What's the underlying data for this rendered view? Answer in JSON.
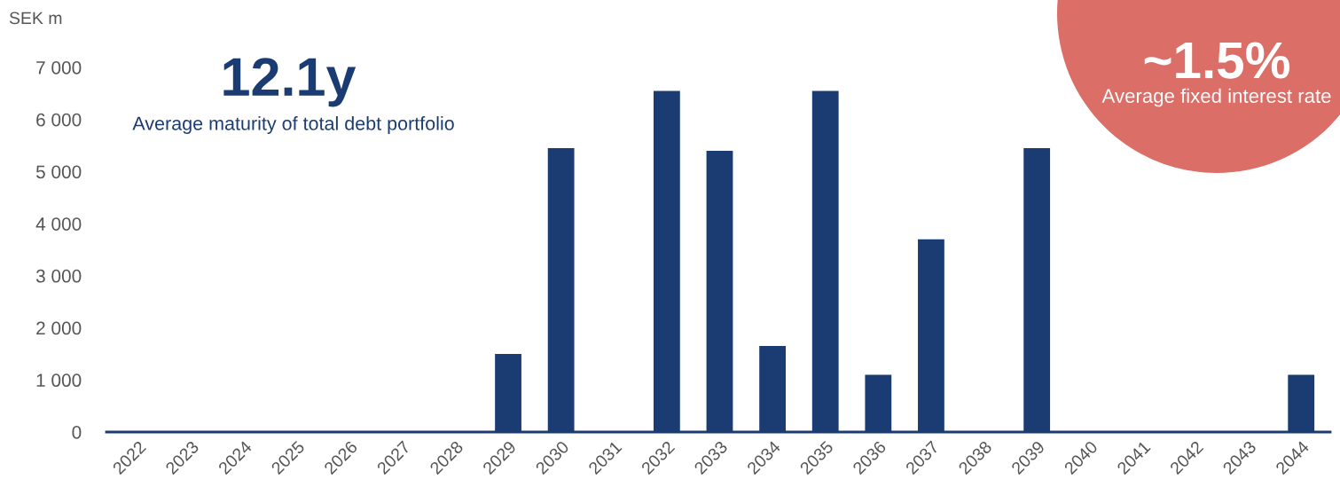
{
  "chart_data": {
    "type": "bar",
    "ylabel": "SEK m",
    "categories": [
      "2022",
      "2023",
      "2024",
      "2025",
      "2026",
      "2027",
      "2028",
      "2029",
      "2030",
      "2031",
      "2032",
      "2033",
      "2034",
      "2035",
      "2036",
      "2037",
      "2038",
      "2039",
      "2040",
      "2041",
      "2042",
      "2043",
      "2044"
    ],
    "values": [
      0,
      0,
      0,
      0,
      0,
      0,
      0,
      1500,
      5450,
      0,
      6550,
      5400,
      1650,
      6550,
      1100,
      3700,
      0,
      5450,
      0,
      0,
      0,
      0,
      1100
    ],
    "color": "#1b3c73",
    "ylim": [
      0,
      7000
    ],
    "yticks": [
      {
        "value": 0,
        "label": "0"
      },
      {
        "value": 1000,
        "label": "1 000"
      },
      {
        "value": 2000,
        "label": "2 000"
      },
      {
        "value": 3000,
        "label": "3 000"
      },
      {
        "value": 4000,
        "label": "4 000"
      },
      {
        "value": 5000,
        "label": "5 000"
      },
      {
        "value": 6000,
        "label": "6 000"
      },
      {
        "value": 7000,
        "label": "7 000"
      }
    ],
    "grid": false,
    "annotations": [
      "12.1y",
      "Average maturity of total debt portfolio",
      "~1.5%",
      "Average fixed interest rate"
    ]
  }
}
